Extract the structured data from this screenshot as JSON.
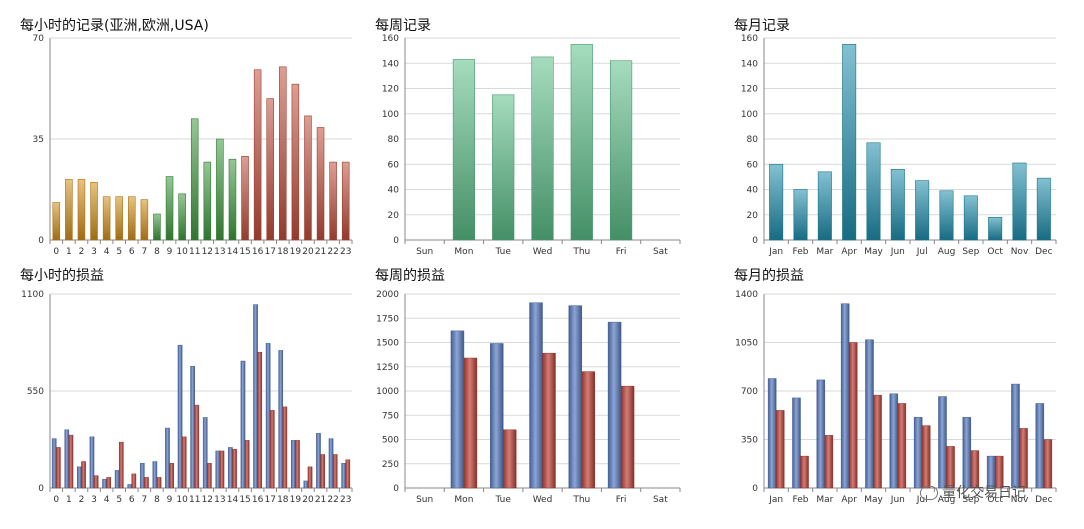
{
  "colors": {
    "orange": "#D4901A",
    "green": "#3E9A3E",
    "red": "#C24E3C",
    "mint": "#5BBF88",
    "teal": "#1E8FAD",
    "blue": "#5A7FC4",
    "darkred": "#C0453A",
    "grid": "#d9d9d9",
    "axis": "#888888"
  },
  "watermark": {
    "text": "量化交易日记",
    "icon": "wechat-icon"
  },
  "chart_data": [
    {
      "id": "hourly-records",
      "type": "bar",
      "title": "每小时的记录(亚洲,欧洲,USA)",
      "categories": [
        "0",
        "1",
        "2",
        "3",
        "4",
        "5",
        "6",
        "7",
        "8",
        "9",
        "10",
        "11",
        "12",
        "13",
        "14",
        "15",
        "16",
        "17",
        "18",
        "19",
        "20",
        "21",
        "22",
        "23"
      ],
      "values": [
        13,
        21,
        21,
        20,
        15,
        15,
        15,
        14,
        9,
        22,
        16,
        42,
        27,
        35,
        28,
        29,
        59,
        49,
        60,
        54,
        43,
        39,
        27,
        27
      ],
      "bar_colors": [
        "orange",
        "orange",
        "orange",
        "orange",
        "orange",
        "orange",
        "orange",
        "orange",
        "green",
        "green",
        "green",
        "green",
        "green",
        "green",
        "green",
        "red",
        "red",
        "red",
        "red",
        "red",
        "red",
        "red",
        "red",
        "red"
      ],
      "ylim": [
        0,
        70
      ],
      "yticks": [
        0,
        35,
        70
      ],
      "grid": true
    },
    {
      "id": "weekly-records",
      "type": "bar",
      "title": "每周记录",
      "categories": [
        "Sun",
        "Mon",
        "Tue",
        "Wed",
        "Thu",
        "Fri",
        "Sat"
      ],
      "values": [
        0,
        143,
        115,
        145,
        155,
        142,
        0
      ],
      "color": "mint",
      "ylim": [
        0,
        160
      ],
      "yticks": [
        0,
        20,
        40,
        60,
        80,
        100,
        120,
        140,
        160
      ],
      "grid": true
    },
    {
      "id": "monthly-records",
      "type": "bar",
      "title": "每月记录",
      "categories": [
        "Jan",
        "Feb",
        "Mar",
        "Apr",
        "May",
        "Jun",
        "Jul",
        "Aug",
        "Sep",
        "Oct",
        "Nov",
        "Dec"
      ],
      "values": [
        60,
        40,
        54,
        155,
        77,
        56,
        47,
        39,
        35,
        18,
        61,
        49
      ],
      "color": "teal",
      "ylim": [
        0,
        160
      ],
      "yticks": [
        0,
        20,
        40,
        60,
        80,
        100,
        120,
        140,
        160
      ],
      "grid": true
    },
    {
      "id": "hourly-pnl",
      "type": "bar",
      "title": "每小时的损益",
      "categories": [
        "0",
        "1",
        "2",
        "3",
        "4",
        "5",
        "6",
        "7",
        "8",
        "9",
        "10",
        "11",
        "12",
        "13",
        "14",
        "15",
        "16",
        "17",
        "18",
        "19",
        "20",
        "21",
        "22",
        "23"
      ],
      "series": [
        {
          "values": [
            280,
            330,
            120,
            290,
            50,
            100,
            20,
            140,
            150,
            340,
            810,
            690,
            400,
            210,
            230,
            720,
            1040,
            820,
            780,
            270,
            40,
            310,
            280,
            140
          ],
          "color": "blue"
        },
        {
          "values": [
            230,
            300,
            150,
            70,
            60,
            260,
            80,
            60,
            60,
            140,
            290,
            470,
            140,
            210,
            220,
            270,
            770,
            440,
            460,
            270,
            120,
            190,
            190,
            160
          ],
          "color": "darkred"
        }
      ],
      "ylim": [
        0,
        1100
      ],
      "yticks": [
        0,
        550,
        1100
      ],
      "grid": true
    },
    {
      "id": "weekly-pnl",
      "type": "bar",
      "title": "每周的损益",
      "categories": [
        "Sun",
        "Mon",
        "Tue",
        "Wed",
        "Thu",
        "Fri",
        "Sat"
      ],
      "series": [
        {
          "values": [
            0,
            1620,
            1490,
            1910,
            1880,
            1710,
            0
          ],
          "color": "blue"
        },
        {
          "values": [
            0,
            1340,
            600,
            1390,
            1200,
            1050,
            0
          ],
          "color": "darkred"
        }
      ],
      "ylim": [
        0,
        2000
      ],
      "yticks": [
        0,
        250,
        500,
        750,
        1000,
        1250,
        1500,
        1750,
        2000
      ],
      "grid": true
    },
    {
      "id": "monthly-pnl",
      "type": "bar",
      "title": "每月的损益",
      "categories": [
        "Jan",
        "Feb",
        "Mar",
        "Apr",
        "May",
        "Jun",
        "Jul",
        "Aug",
        "Sep",
        "Oct",
        "Nov",
        "Dec"
      ],
      "series": [
        {
          "values": [
            790,
            650,
            780,
            1330,
            1070,
            680,
            510,
            660,
            510,
            230,
            750,
            610
          ],
          "color": "blue"
        },
        {
          "values": [
            560,
            230,
            380,
            1050,
            670,
            610,
            450,
            300,
            270,
            230,
            430,
            350
          ],
          "color": "darkred"
        }
      ],
      "ylim": [
        0,
        1400
      ],
      "yticks": [
        0,
        350,
        700,
        1050,
        1400
      ],
      "grid": true
    }
  ]
}
